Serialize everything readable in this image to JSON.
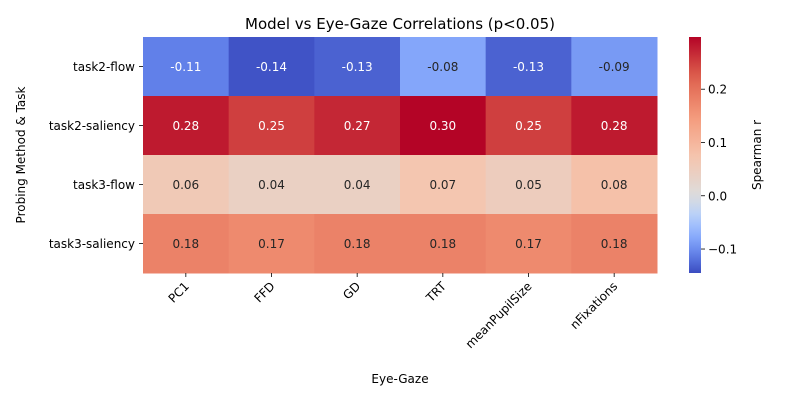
{
  "chart_data": {
    "type": "heatmap",
    "title": "Model vs Eye-Gaze Correlations (p<0.05)",
    "xlabel": "Eye-Gaze",
    "ylabel": "Probing Method & Task",
    "x_categories": [
      "PC1",
      "FFD",
      "GD",
      "TRT",
      "meanPupilSize",
      "nFixations"
    ],
    "y_categories": [
      "task2-flow",
      "task2-saliency",
      "task3-flow",
      "task3-saliency"
    ],
    "values": [
      [
        -0.11,
        -0.14,
        -0.13,
        -0.08,
        -0.13,
        -0.09
      ],
      [
        0.28,
        0.25,
        0.27,
        0.3,
        0.25,
        0.28
      ],
      [
        0.06,
        0.04,
        0.04,
        0.07,
        0.05,
        0.08
      ],
      [
        0.18,
        0.17,
        0.18,
        0.18,
        0.17,
        0.18
      ]
    ],
    "value_labels": [
      [
        "-0.11",
        "-0.14",
        "-0.13",
        "-0.08",
        "-0.13",
        "-0.09"
      ],
      [
        "0.28",
        "0.25",
        "0.27",
        "0.30",
        "0.25",
        "0.28"
      ],
      [
        "0.06",
        "0.04",
        "0.04",
        "0.07",
        "0.05",
        "0.08"
      ],
      [
        "0.18",
        "0.17",
        "0.18",
        "0.18",
        "0.17",
        "0.18"
      ]
    ],
    "colormap": "coolwarm",
    "color_center": 0.0,
    "color_range": [
      -0.145,
      0.298
    ],
    "colorbar": {
      "label": "Spearman r",
      "ticks": [
        -0.1,
        0.0,
        0.1,
        0.2
      ],
      "tick_labels": [
        "−0.1",
        "0.0",
        "0.1",
        "0.2"
      ]
    },
    "grid": false,
    "legend": "colorbar-right"
  }
}
